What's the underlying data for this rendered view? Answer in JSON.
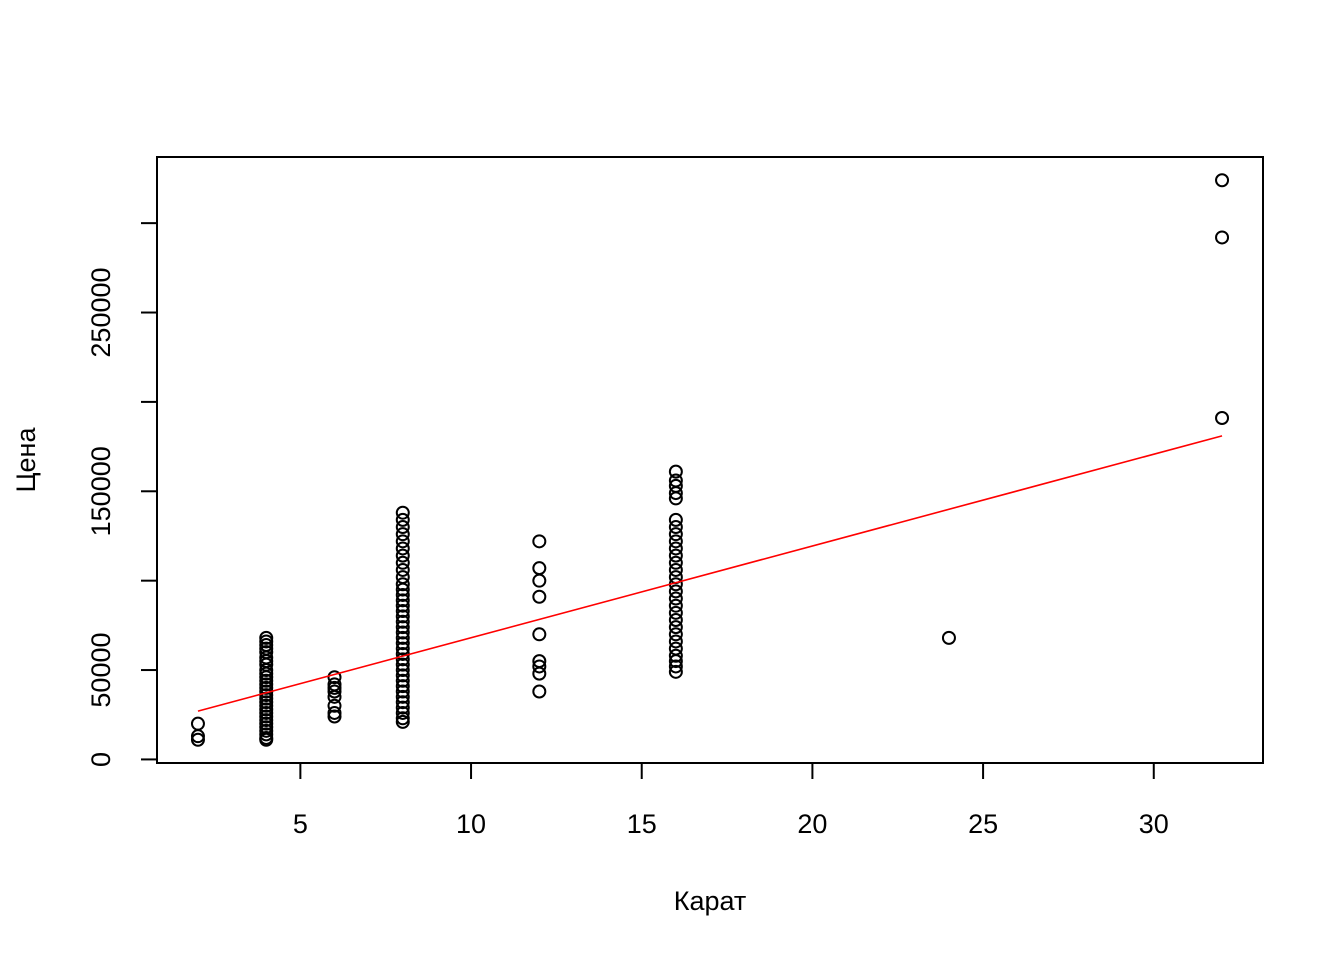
{
  "chart_data": {
    "type": "scatter",
    "title": "",
    "xlabel": "Карат",
    "ylabel": "Цена",
    "xlim": [
      0.8,
      33.2
    ],
    "ylim": [
      -2000,
      337000
    ],
    "x_ticks": [
      {
        "value": 5,
        "label": "5"
      },
      {
        "value": 10,
        "label": "10"
      },
      {
        "value": 15,
        "label": "15"
      },
      {
        "value": 20,
        "label": "20"
      },
      {
        "value": 25,
        "label": "25"
      },
      {
        "value": 30,
        "label": "30"
      }
    ],
    "y_ticks": [
      {
        "value": 0,
        "label": "0"
      },
      {
        "value": 50000,
        "label": "50000"
      },
      {
        "value": 100000,
        "label": ""
      },
      {
        "value": 150000,
        "label": "150000"
      },
      {
        "value": 200000,
        "label": ""
      },
      {
        "value": 250000,
        "label": "250000"
      },
      {
        "value": 300000,
        "label": ""
      }
    ],
    "grid": false,
    "colors": {
      "points": "#000000",
      "fit_line": "#ff0000",
      "frame": "#000000"
    },
    "series": [
      {
        "marker": "open-circle",
        "points": [
          {
            "x": 2,
            "y": 20000
          },
          {
            "x": 2,
            "y": 13000
          },
          {
            "x": 2,
            "y": 11000
          },
          {
            "x": 4,
            "y": 68000
          },
          {
            "x": 4,
            "y": 66000
          },
          {
            "x": 4,
            "y": 64000
          },
          {
            "x": 4,
            "y": 62000
          },
          {
            "x": 4,
            "y": 60000
          },
          {
            "x": 4,
            "y": 57000
          },
          {
            "x": 4,
            "y": 55000
          },
          {
            "x": 4,
            "y": 53000
          },
          {
            "x": 4,
            "y": 50000
          },
          {
            "x": 4,
            "y": 48000
          },
          {
            "x": 4,
            "y": 46000
          },
          {
            "x": 4,
            "y": 44000
          },
          {
            "x": 4,
            "y": 42000
          },
          {
            "x": 4,
            "y": 40000
          },
          {
            "x": 4,
            "y": 38000
          },
          {
            "x": 4,
            "y": 36000
          },
          {
            "x": 4,
            "y": 34000
          },
          {
            "x": 4,
            "y": 32000
          },
          {
            "x": 4,
            "y": 30000
          },
          {
            "x": 4,
            "y": 28000
          },
          {
            "x": 4,
            "y": 26000
          },
          {
            "x": 4,
            "y": 24000
          },
          {
            "x": 4,
            "y": 22000
          },
          {
            "x": 4,
            "y": 20000
          },
          {
            "x": 4,
            "y": 18000
          },
          {
            "x": 4,
            "y": 16000
          },
          {
            "x": 4,
            "y": 14000
          },
          {
            "x": 4,
            "y": 12000
          },
          {
            "x": 4,
            "y": 11000
          },
          {
            "x": 6,
            "y": 46000
          },
          {
            "x": 6,
            "y": 42000
          },
          {
            "x": 6,
            "y": 40000
          },
          {
            "x": 6,
            "y": 38000
          },
          {
            "x": 6,
            "y": 35000
          },
          {
            "x": 6,
            "y": 30000
          },
          {
            "x": 6,
            "y": 26000
          },
          {
            "x": 6,
            "y": 24000
          },
          {
            "x": 8,
            "y": 138000
          },
          {
            "x": 8,
            "y": 134000
          },
          {
            "x": 8,
            "y": 130000
          },
          {
            "x": 8,
            "y": 126000
          },
          {
            "x": 8,
            "y": 122000
          },
          {
            "x": 8,
            "y": 118000
          },
          {
            "x": 8,
            "y": 114000
          },
          {
            "x": 8,
            "y": 110000
          },
          {
            "x": 8,
            "y": 106000
          },
          {
            "x": 8,
            "y": 102000
          },
          {
            "x": 8,
            "y": 98000
          },
          {
            "x": 8,
            "y": 95000
          },
          {
            "x": 8,
            "y": 92000
          },
          {
            "x": 8,
            "y": 89000
          },
          {
            "x": 8,
            "y": 86000
          },
          {
            "x": 8,
            "y": 83000
          },
          {
            "x": 8,
            "y": 80000
          },
          {
            "x": 8,
            "y": 77000
          },
          {
            "x": 8,
            "y": 74000
          },
          {
            "x": 8,
            "y": 71000
          },
          {
            "x": 8,
            "y": 68000
          },
          {
            "x": 8,
            "y": 65000
          },
          {
            "x": 8,
            "y": 62000
          },
          {
            "x": 8,
            "y": 59000
          },
          {
            "x": 8,
            "y": 56000
          },
          {
            "x": 8,
            "y": 53000
          },
          {
            "x": 8,
            "y": 50000
          },
          {
            "x": 8,
            "y": 47000
          },
          {
            "x": 8,
            "y": 44000
          },
          {
            "x": 8,
            "y": 41000
          },
          {
            "x": 8,
            "y": 38000
          },
          {
            "x": 8,
            "y": 35000
          },
          {
            "x": 8,
            "y": 32000
          },
          {
            "x": 8,
            "y": 29000
          },
          {
            "x": 8,
            "y": 26000
          },
          {
            "x": 8,
            "y": 23000
          },
          {
            "x": 8,
            "y": 21000
          },
          {
            "x": 12,
            "y": 122000
          },
          {
            "x": 12,
            "y": 107000
          },
          {
            "x": 12,
            "y": 100000
          },
          {
            "x": 12,
            "y": 91000
          },
          {
            "x": 12,
            "y": 70000
          },
          {
            "x": 12,
            "y": 55000
          },
          {
            "x": 12,
            "y": 52000
          },
          {
            "x": 12,
            "y": 48000
          },
          {
            "x": 12,
            "y": 38000
          },
          {
            "x": 16,
            "y": 161000
          },
          {
            "x": 16,
            "y": 156000
          },
          {
            "x": 16,
            "y": 153000
          },
          {
            "x": 16,
            "y": 149000
          },
          {
            "x": 16,
            "y": 146000
          },
          {
            "x": 16,
            "y": 134000
          },
          {
            "x": 16,
            "y": 130000
          },
          {
            "x": 16,
            "y": 126000
          },
          {
            "x": 16,
            "y": 122000
          },
          {
            "x": 16,
            "y": 118000
          },
          {
            "x": 16,
            "y": 114000
          },
          {
            "x": 16,
            "y": 110000
          },
          {
            "x": 16,
            "y": 106000
          },
          {
            "x": 16,
            "y": 102000
          },
          {
            "x": 16,
            "y": 98000
          },
          {
            "x": 16,
            "y": 94000
          },
          {
            "x": 16,
            "y": 90000
          },
          {
            "x": 16,
            "y": 86000
          },
          {
            "x": 16,
            "y": 82000
          },
          {
            "x": 16,
            "y": 78000
          },
          {
            "x": 16,
            "y": 74000
          },
          {
            "x": 16,
            "y": 70000
          },
          {
            "x": 16,
            "y": 66000
          },
          {
            "x": 16,
            "y": 62000
          },
          {
            "x": 16,
            "y": 58000
          },
          {
            "x": 16,
            "y": 55000
          },
          {
            "x": 16,
            "y": 52000
          },
          {
            "x": 16,
            "y": 49000
          },
          {
            "x": 24,
            "y": 68000
          },
          {
            "x": 32,
            "y": 324000
          },
          {
            "x": 32,
            "y": 292000
          },
          {
            "x": 32,
            "y": 191000
          }
        ]
      }
    ],
    "fit_line": {
      "x": [
        2,
        32
      ],
      "y": [
        27000,
        181000
      ]
    }
  }
}
